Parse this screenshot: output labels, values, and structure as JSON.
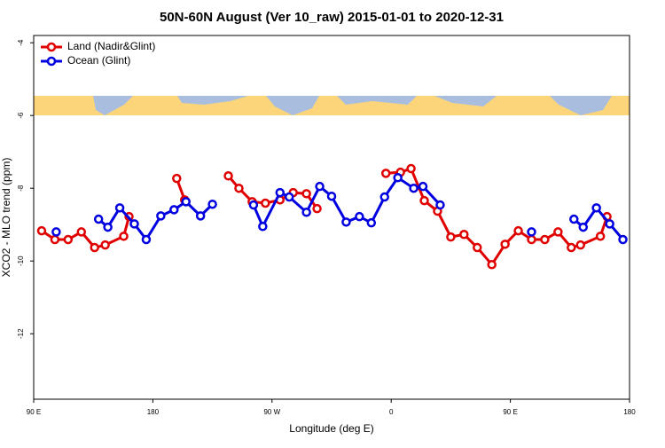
{
  "chart_data": {
    "type": "line",
    "title": "50N-60N August (Ver 10_raw)   2015-01-01 to 2020-12-31",
    "x_label": "Longitude (deg E)",
    "y_label": "XCO2 - MLO trend (ppm)",
    "xlim": [
      90,
      540
    ],
    "xticks": [
      {
        "value": 90,
        "label": "90 E"
      },
      {
        "value": 180,
        "label": "180"
      },
      {
        "value": 270,
        "label": "90 W"
      },
      {
        "value": 360,
        "label": "0"
      },
      {
        "value": 450,
        "label": "90 E"
      },
      {
        "value": 540,
        "label": "180"
      }
    ],
    "ylim": [
      -13.8,
      -3.8
    ],
    "yticks": [
      -4,
      -6,
      -8,
      -10,
      -12
    ],
    "legend": "top-left",
    "series": [
      {
        "name": "Land (Nadir&Glint)",
        "color": "#e00000",
        "x": [
          96,
          106,
          116,
          126,
          136,
          144,
          158,
          162,
          null,
          198,
          204,
          null,
          237,
          245,
          255,
          265,
          276,
          286,
          296,
          304,
          null,
          356,
          367,
          375,
          385,
          395,
          405,
          415,
          425,
          436,
          446,
          456,
          466,
          476,
          486,
          496,
          503,
          518,
          523
        ],
        "values": [
          -9.17,
          -9.41,
          -9.41,
          -9.2,
          -9.63,
          -9.56,
          -9.32,
          -8.78,
          null,
          -7.73,
          -8.32,
          null,
          -7.66,
          -8.0,
          -8.37,
          -8.41,
          -8.32,
          -8.12,
          -8.15,
          -8.56,
          null,
          -7.59,
          -7.56,
          -7.46,
          -8.34,
          -8.63,
          -9.34,
          -9.27,
          -9.63,
          -10.1,
          -9.54,
          -9.17,
          -9.41,
          -9.41,
          -9.2,
          -9.63,
          -9.56,
          -9.32,
          -8.78
        ]
      },
      {
        "name": "Ocean (Glint)",
        "color": "#0000e0",
        "x": [
          107,
          null,
          139,
          146,
          155,
          166,
          175,
          186,
          196,
          205,
          216,
          225,
          null,
          256,
          263,
          276,
          283,
          296,
          306,
          315,
          326,
          336,
          345,
          355,
          365,
          377,
          384,
          397,
          null,
          466,
          null,
          498,
          505,
          515,
          525,
          535
        ],
        "values": [
          -9.2,
          null,
          -8.85,
          -9.07,
          -8.54,
          -8.98,
          -9.41,
          -8.76,
          -8.59,
          -8.37,
          -8.76,
          -8.44,
          null,
          -8.46,
          -9.05,
          -8.12,
          -8.24,
          -8.66,
          -7.95,
          -8.22,
          -8.93,
          -8.78,
          -8.95,
          -8.24,
          -7.71,
          -8.0,
          -7.95,
          -8.46,
          null,
          -9.2,
          null,
          -8.85,
          -9.07,
          -8.54,
          -8.98,
          -9.41
        ]
      }
    ]
  }
}
